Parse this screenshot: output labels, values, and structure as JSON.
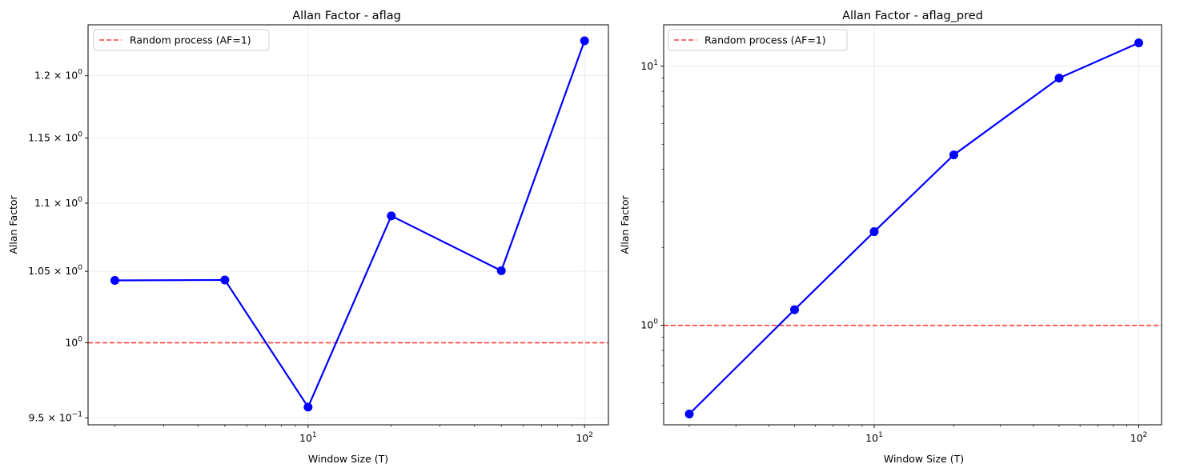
{
  "chart_data": [
    {
      "type": "line",
      "title": "Allan Factor - aflag",
      "xlabel": "Window Size (T)",
      "ylabel": "Allan Factor",
      "xscale": "log",
      "yscale": "log",
      "xlim": [
        1.6,
        122
      ],
      "ylim": [
        0.9455,
        1.2425
      ],
      "grid": true,
      "legend_position": "top-left",
      "x_ticks": [
        {
          "value": 10,
          "base": "10",
          "exp": "1"
        },
        {
          "value": 100,
          "base": "10",
          "exp": "2"
        }
      ],
      "y_ticks": [
        {
          "value": 0.95,
          "mantissa": "9.5",
          "base": "10",
          "exp": "−1"
        },
        {
          "value": 1.0,
          "mantissa": "",
          "base": "10",
          "exp": "0"
        },
        {
          "value": 1.05,
          "mantissa": "1.05",
          "base": "10",
          "exp": "0"
        },
        {
          "value": 1.1,
          "mantissa": "1.1",
          "base": "10",
          "exp": "0"
        },
        {
          "value": 1.15,
          "mantissa": "1.15",
          "base": "10",
          "exp": "0"
        },
        {
          "value": 1.2,
          "mantissa": "1.2",
          "base": "10",
          "exp": "0"
        }
      ],
      "series": [
        {
          "x": [
            2,
            5,
            10,
            20,
            50,
            100
          ],
          "y": [
            1.0435,
            1.0438,
            0.957,
            1.0905,
            1.0504,
            1.229
          ],
          "color": "#0000ff"
        }
      ],
      "reference_line": {
        "y": 1.0,
        "label": "Random process (AF=1)",
        "color": "#ff3b3b"
      }
    },
    {
      "type": "line",
      "title": "Allan Factor - aflag_pred",
      "xlabel": "Window Size (T)",
      "ylabel": "Allan Factor",
      "xscale": "log",
      "yscale": "log",
      "xlim": [
        1.6,
        122
      ],
      "ylim": [
        0.4134,
        14.45
      ],
      "grid": true,
      "legend_position": "top-left",
      "x_ticks": [
        {
          "value": 10,
          "base": "10",
          "exp": "1"
        },
        {
          "value": 100,
          "base": "10",
          "exp": "2"
        }
      ],
      "y_ticks": [
        {
          "value": 1,
          "mantissa": "",
          "base": "10",
          "exp": "0"
        },
        {
          "value": 10,
          "mantissa": "",
          "base": "10",
          "exp": "1"
        }
      ],
      "series": [
        {
          "x": [
            2,
            5,
            10,
            20,
            50,
            100
          ],
          "y": [
            0.455,
            1.15,
            2.3,
            4.55,
            9.0,
            12.3
          ],
          "color": "#0000ff"
        }
      ],
      "reference_line": {
        "y": 1.0,
        "label": "Random process (AF=1)",
        "color": "#ff3b3b"
      }
    }
  ],
  "colors": {
    "series": "#0000ff",
    "reference": "#ff3b3b",
    "grid": "#e6e6e6"
  }
}
